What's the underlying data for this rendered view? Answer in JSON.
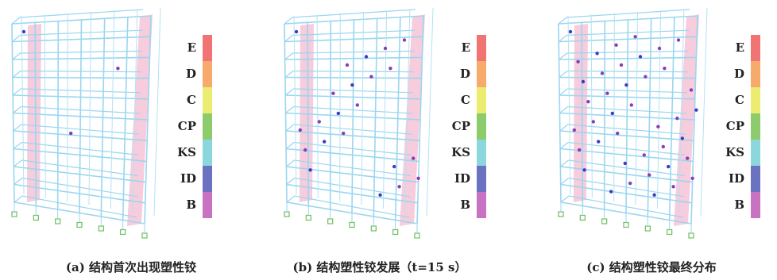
{
  "panels": [
    {
      "caption": "(a) 结构首次出现塑性铰",
      "legend": [
        {
          "label": "E",
          "color": "#f07474"
        },
        {
          "label": "D",
          "color": "#f6aa6c"
        },
        {
          "label": "C",
          "color": "#ecec70"
        },
        {
          "label": "CP",
          "color": "#8ccc6c"
        },
        {
          "label": "KS",
          "color": "#8cd6de"
        },
        {
          "label": "ID",
          "color": "#6c72c2"
        },
        {
          "label": "B",
          "color": "#c872c2"
        }
      ]
    },
    {
      "caption": "(b) 结构塑性铰发展（t=15 s）",
      "legend": [
        {
          "label": "E",
          "color": "#f07474"
        },
        {
          "label": "D",
          "color": "#f6aa6c"
        },
        {
          "label": "C",
          "color": "#ecec70"
        },
        {
          "label": "CP",
          "color": "#8ccc6c"
        },
        {
          "label": "KS",
          "color": "#8cd6de"
        },
        {
          "label": "ID",
          "color": "#6c72c2"
        },
        {
          "label": "B",
          "color": "#c872c2"
        }
      ]
    },
    {
      "caption": "(c) 结构塑性铰最终分布",
      "legend": [
        {
          "label": "E",
          "color": "#f07474"
        },
        {
          "label": "D",
          "color": "#f6aa6c"
        },
        {
          "label": "C",
          "color": "#ecec70"
        },
        {
          "label": "CP",
          "color": "#8ccc6c"
        },
        {
          "label": "KS",
          "color": "#8cd6de"
        },
        {
          "label": "ID",
          "color": "#6c72c2"
        },
        {
          "label": "B",
          "color": "#c872c2"
        }
      ]
    }
  ]
}
